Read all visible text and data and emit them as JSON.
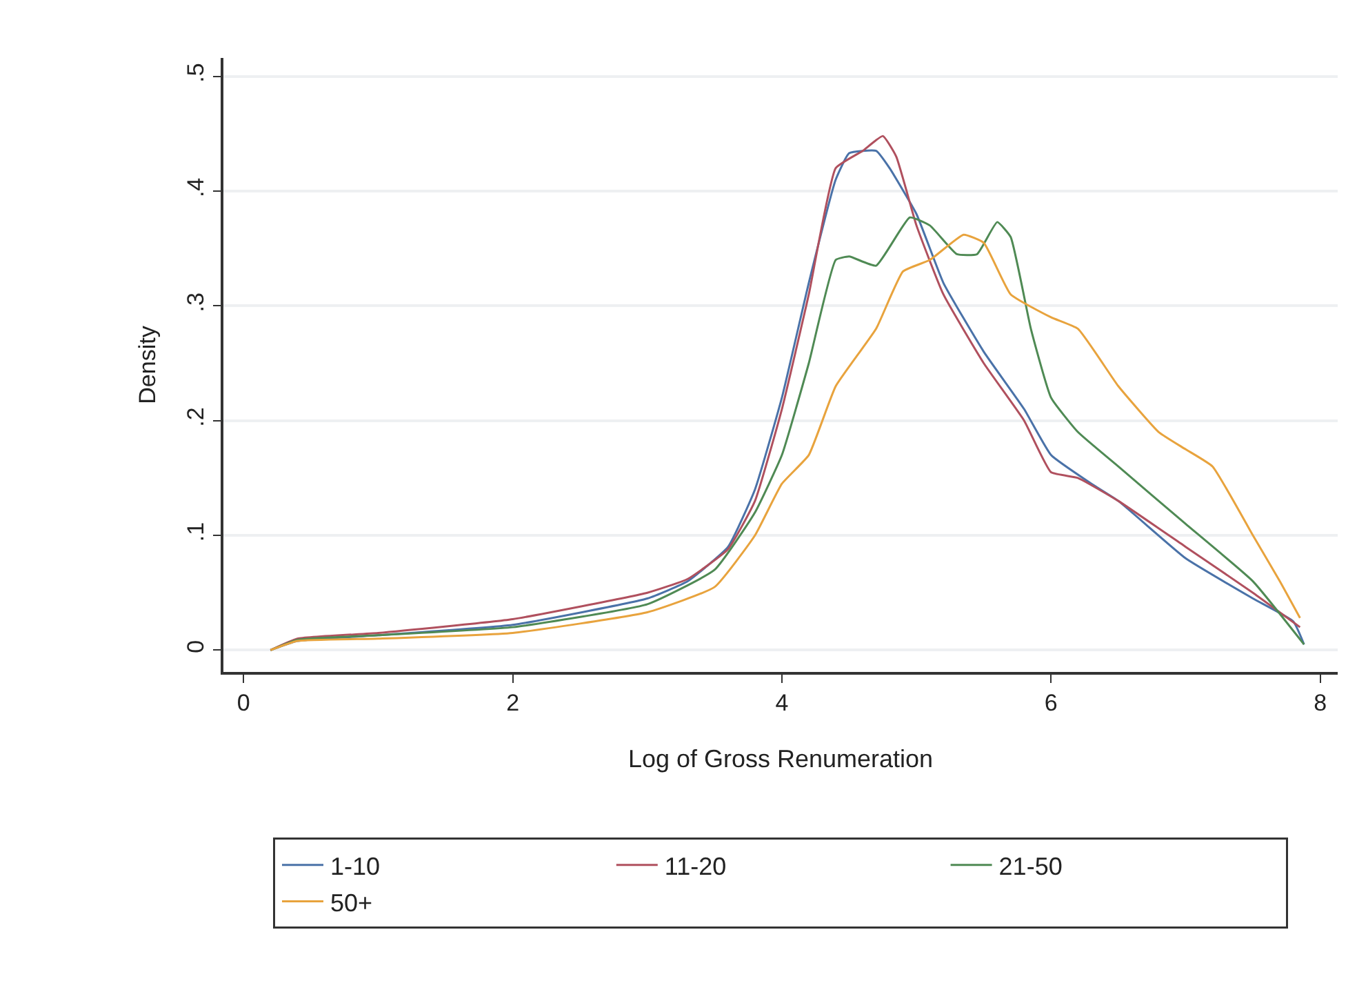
{
  "chart_data": {
    "type": "line",
    "xlabel": "Log of Gross Renumeration",
    "ylabel": "Density",
    "xlim": [
      -0.15,
      8.13
    ],
    "xticks": [
      0,
      2,
      4,
      6,
      8
    ],
    "ylim": [
      -0.019,
      0.516
    ],
    "yticks": [
      {
        "value": 0,
        "label": "0"
      },
      {
        "value": 0.1,
        "label": ".1"
      },
      {
        "value": 0.2,
        "label": ".2"
      },
      {
        "value": 0.3,
        "label": ".3"
      },
      {
        "value": 0.4,
        "label": ".4"
      },
      {
        "value": 0.5,
        "label": ".5"
      }
    ],
    "grid": "y",
    "legend": "bottom",
    "line_style": "solid",
    "marker": "none",
    "series": [
      {
        "name": "1-10",
        "color": "#4a72a8",
        "x": [
          0.2,
          0.4,
          1,
          2,
          3,
          3.3,
          3.6,
          3.8,
          4,
          4.2,
          4.4,
          4.5,
          4.7,
          4.8,
          5.0,
          5.2,
          5.5,
          5.8,
          6.0,
          6.3,
          6.5,
          7.0,
          7.5,
          7.8,
          7.88
        ],
        "values": [
          0,
          0.008,
          0.013,
          0.022,
          0.045,
          0.06,
          0.09,
          0.14,
          0.22,
          0.32,
          0.41,
          0.433,
          0.435,
          0.42,
          0.38,
          0.32,
          0.26,
          0.21,
          0.17,
          0.145,
          0.13,
          0.08,
          0.045,
          0.025,
          0.005
        ]
      },
      {
        "name": "11-20",
        "color": "#b0505e",
        "x": [
          0.2,
          0.4,
          1,
          2,
          3,
          3.3,
          3.6,
          3.8,
          4,
          4.2,
          4.4,
          4.6,
          4.75,
          4.85,
          5.0,
          5.2,
          5.5,
          5.8,
          6.0,
          6.2,
          6.5,
          7.0,
          7.5,
          7.85
        ],
        "values": [
          0,
          0.01,
          0.015,
          0.027,
          0.05,
          0.062,
          0.088,
          0.13,
          0.21,
          0.31,
          0.42,
          0.435,
          0.448,
          0.43,
          0.37,
          0.31,
          0.25,
          0.2,
          0.155,
          0.15,
          0.13,
          0.09,
          0.05,
          0.02
        ]
      },
      {
        "name": "21-50",
        "color": "#4f8a54",
        "x": [
          0.2,
          0.4,
          1,
          2,
          3,
          3.5,
          3.8,
          4.0,
          4.2,
          4.4,
          4.5,
          4.7,
          4.95,
          5.1,
          5.3,
          5.45,
          5.6,
          5.7,
          5.85,
          6.0,
          6.2,
          6.5,
          7.0,
          7.5,
          7.88
        ],
        "values": [
          0,
          0.009,
          0.013,
          0.02,
          0.04,
          0.07,
          0.12,
          0.17,
          0.25,
          0.34,
          0.343,
          0.335,
          0.377,
          0.37,
          0.345,
          0.345,
          0.373,
          0.36,
          0.28,
          0.22,
          0.19,
          0.16,
          0.11,
          0.06,
          0.005
        ]
      },
      {
        "name": "50+",
        "color": "#e8a33d",
        "x": [
          0.2,
          0.4,
          1,
          2,
          3,
          3.5,
          3.8,
          4.0,
          4.2,
          4.4,
          4.7,
          4.9,
          5.1,
          5.35,
          5.5,
          5.7,
          6.0,
          6.2,
          6.5,
          6.8,
          7.0,
          7.2,
          7.5,
          7.7,
          7.85
        ],
        "values": [
          0,
          0.008,
          0.01,
          0.015,
          0.033,
          0.055,
          0.1,
          0.145,
          0.17,
          0.23,
          0.28,
          0.33,
          0.34,
          0.362,
          0.355,
          0.31,
          0.29,
          0.28,
          0.23,
          0.19,
          0.175,
          0.16,
          0.1,
          0.06,
          0.028
        ]
      }
    ]
  }
}
